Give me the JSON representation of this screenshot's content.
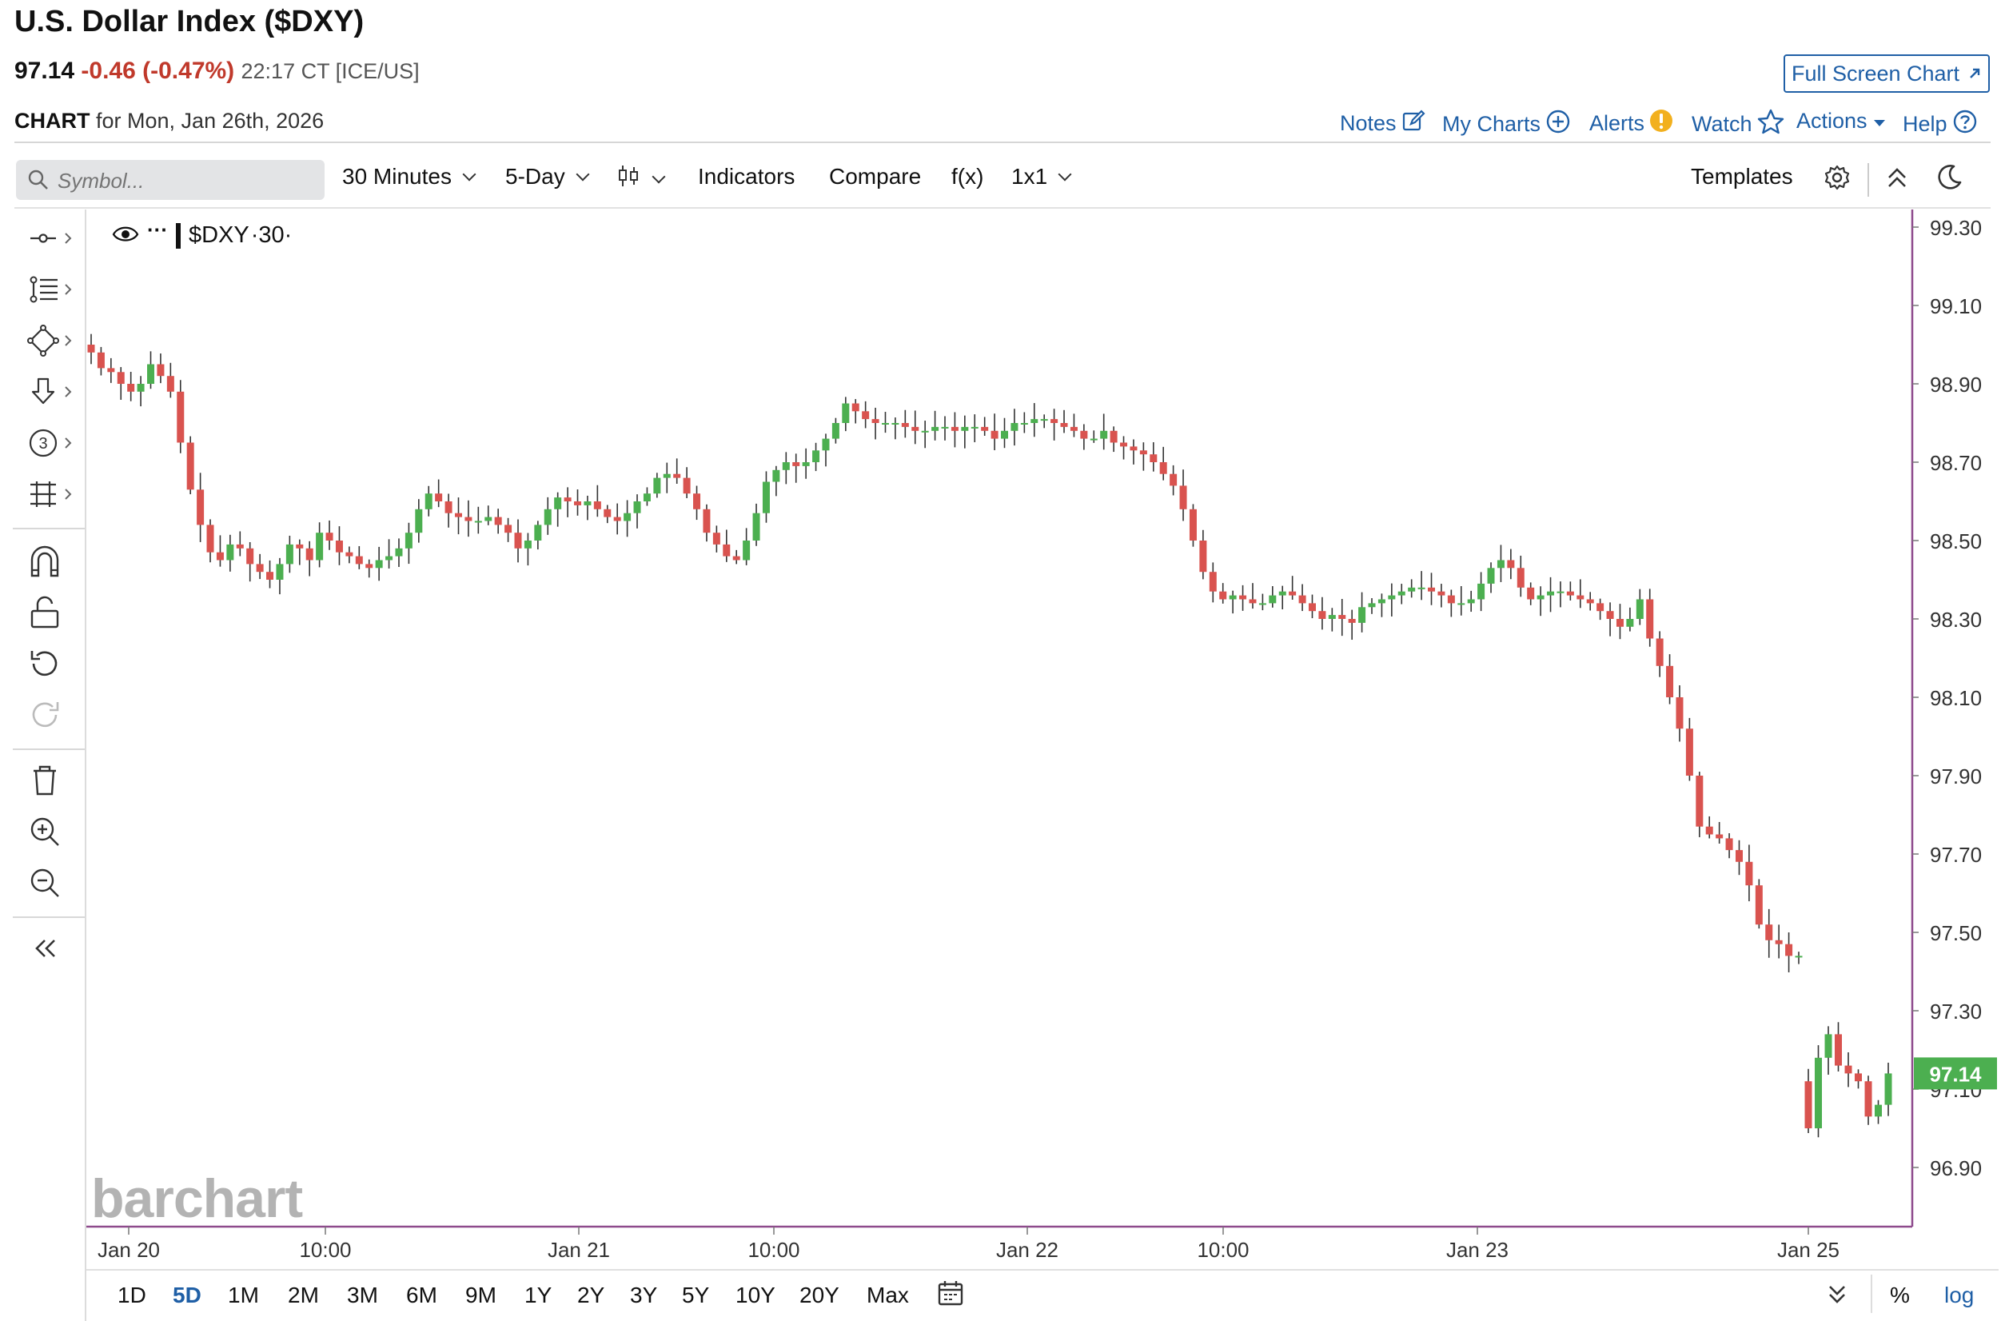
{
  "header": {
    "title": "U.S. Dollar Index ($DXY)",
    "last": "97.14",
    "change": "-0.46 (-0.47%)",
    "time": "22:17 CT [ICE/US]",
    "full_screen": "Full Screen Chart",
    "chart_label": "CHART",
    "chart_for": "for Mon, Jan 26th, 2026"
  },
  "top_links": {
    "notes": "Notes",
    "my_charts": "My Charts",
    "alerts": "Alerts",
    "watch": "Watch",
    "actions": "Actions",
    "help": "Help"
  },
  "toolbar": {
    "search_placeholder": "Symbol...",
    "interval": "30 Minutes",
    "period": "5-Day",
    "indicators": "Indicators",
    "compare": "Compare",
    "fx": "f(x)",
    "layout": "1x1",
    "templates": "Templates"
  },
  "legend": {
    "symbol": "$DXY",
    "interval": "·30·"
  },
  "watermark": "barchart",
  "range_buttons": [
    "1D",
    "5D",
    "1M",
    "2M",
    "3M",
    "6M",
    "9M",
    "1Y",
    "2Y",
    "3Y",
    "5Y",
    "10Y",
    "20Y",
    "Max"
  ],
  "range_active": "5D",
  "scale_buttons": {
    "percent": "%",
    "log": "log"
  },
  "colors": {
    "up": "#4caf50",
    "down": "#d9534f",
    "accent": "#1f5fa6",
    "border": "#8e4a8c"
  },
  "chart_data": {
    "type": "candlestick",
    "symbol": "$DXY",
    "interval": "30 Minutes",
    "last_price": 97.14,
    "ylim": [
      96.75,
      99.35
    ],
    "y_ticks": [
      99.3,
      99.1,
      98.9,
      98.7,
      98.5,
      98.3,
      98.1,
      97.9,
      97.7,
      97.5,
      97.3,
      97.1,
      96.9
    ],
    "x_ticks": [
      "Jan 20",
      "10:00",
      "Jan 21",
      "10:00",
      "Jan 22",
      "10:00",
      "Jan 23",
      "Jan 25"
    ],
    "close_path": [
      98.98,
      98.94,
      98.93,
      98.9,
      98.88,
      98.9,
      98.95,
      98.92,
      98.88,
      98.75,
      98.63,
      98.54,
      98.47,
      98.45,
      98.49,
      98.48,
      98.44,
      98.42,
      98.4,
      98.44,
      98.49,
      98.48,
      98.45,
      98.52,
      98.5,
      98.47,
      98.46,
      98.44,
      98.43,
      98.45,
      98.46,
      98.48,
      98.52,
      98.58,
      98.62,
      98.6,
      98.57,
      98.56,
      98.55,
      98.55,
      98.56,
      98.54,
      98.52,
      98.48,
      98.5,
      98.54,
      98.58,
      98.61,
      98.6,
      98.59,
      98.6,
      98.58,
      98.56,
      98.55,
      98.57,
      98.6,
      98.62,
      98.66,
      98.67,
      98.66,
      98.62,
      98.58,
      98.52,
      98.49,
      98.46,
      98.45,
      98.5,
      98.57,
      98.65,
      98.68,
      98.7,
      98.69,
      98.7,
      98.73,
      98.76,
      98.8,
      98.85,
      98.83,
      98.81,
      98.8,
      98.8,
      98.8,
      98.79,
      98.78,
      98.78,
      98.79,
      98.79,
      98.78,
      98.79,
      98.79,
      98.78,
      98.76,
      98.78,
      98.8,
      98.8,
      98.81,
      98.81,
      98.8,
      98.79,
      98.78,
      98.76,
      98.76,
      98.78,
      98.75,
      98.74,
      98.73,
      98.72,
      98.7,
      98.67,
      98.64,
      98.58,
      98.5,
      98.42,
      98.37,
      98.35,
      98.36,
      98.35,
      98.34,
      98.34,
      98.36,
      98.37,
      98.36,
      98.34,
      98.32,
      98.3,
      98.31,
      98.3,
      98.29,
      98.33,
      98.34,
      98.35,
      98.36,
      98.37,
      98.38,
      98.38,
      98.37,
      98.36,
      98.34,
      98.34,
      98.35,
      98.39,
      98.43,
      98.45,
      98.43,
      98.38,
      98.35,
      98.36,
      98.37,
      98.37,
      98.36,
      98.35,
      98.34,
      98.32,
      98.3,
      98.28,
      98.3,
      98.35,
      98.25,
      98.18,
      98.1,
      98.02,
      97.9,
      97.77,
      97.75,
      97.74,
      97.71,
      97.68,
      97.62,
      97.52,
      97.48,
      97.47,
      97.44,
      97.44
    ],
    "gap_session": [
      97.0,
      97.18,
      97.24,
      97.16,
      97.14,
      97.12,
      97.03,
      97.06,
      97.14
    ]
  }
}
